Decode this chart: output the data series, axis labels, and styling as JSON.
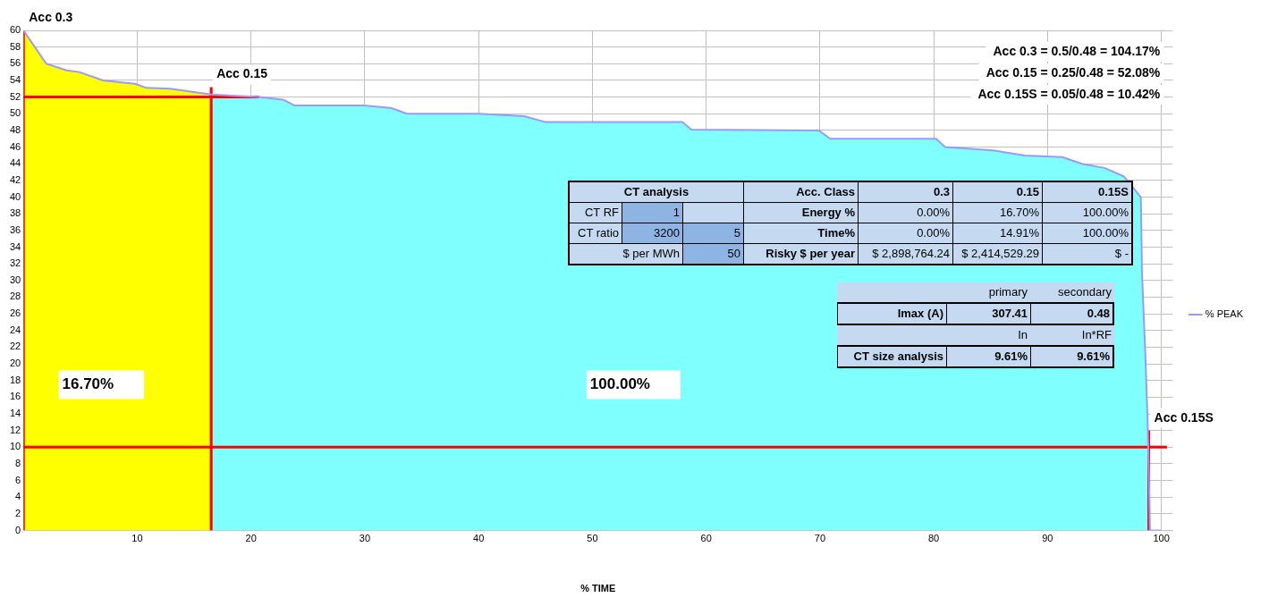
{
  "chart_data": [
    {
      "type": "area",
      "xlabel": "% TIME",
      "xlim": [
        0,
        101
      ],
      "ylim": [
        0,
        60
      ],
      "xticks": [
        {
          "value": 0,
          "label": null
        },
        10,
        20,
        30,
        40,
        50,
        60,
        70,
        80,
        90,
        100
      ],
      "yticks": [
        0,
        2,
        4,
        6,
        8,
        10,
        12,
        14,
        16,
        18,
        20,
        22,
        24,
        26,
        28,
        30,
        32,
        34,
        36,
        38,
        40,
        42,
        44,
        46,
        48,
        50,
        52,
        54,
        56,
        58,
        60
      ],
      "grid": true,
      "legend": "right",
      "marker": "none",
      "series": [
        {
          "type": "area",
          "color": "#ffff00",
          "x": [
            0,
            2,
            3.8,
            4.9,
            7,
            9.8,
            10.8,
            12.9,
            16.5
          ],
          "values": [
            60,
            56,
            55.2,
            55,
            54,
            53.6,
            53.1,
            53,
            52.3
          ]
        },
        {
          "type": "area",
          "color": "#80ffff",
          "x": [
            16.5,
            20.7,
            22.8,
            23.8,
            29.9,
            32.3,
            33.7,
            40,
            44,
            45.9,
            57.9,
            58.7,
            69.9,
            70.9,
            80.2,
            81,
            85.2,
            88,
            91.3,
            93,
            95,
            96.7,
            98.2,
            98.3,
            98.6,
            98.8,
            98.9,
            99
          ],
          "values": [
            52.3,
            52,
            51.7,
            51,
            51,
            50.7,
            50,
            50,
            49.7,
            49,
            49,
            48.1,
            48,
            47,
            47,
            46,
            45.6,
            45,
            44.8,
            44,
            43.5,
            42.5,
            40,
            31,
            21,
            13,
            7,
            0
          ]
        },
        {
          "type": "line",
          "name": "% PEAK",
          "color": "#9999ff",
          "x": [
            0,
            2,
            3.8,
            4.9,
            7,
            9.8,
            10.8,
            12.9,
            16.5,
            20.7,
            22.8,
            23.8,
            29.9,
            32.3,
            33.7,
            40,
            44,
            45.9,
            57.9,
            58.7,
            69.9,
            70.9,
            80.2,
            81,
            85.2,
            88,
            91.3,
            93,
            95,
            96.7,
            98.2,
            98.3,
            98.6,
            98.8,
            98.9,
            99,
            100
          ],
          "values": [
            60,
            56,
            55.2,
            55,
            54,
            53.6,
            53.1,
            53,
            52.3,
            52,
            51.7,
            51,
            51,
            50.7,
            50,
            50,
            49.7,
            49,
            49,
            48.1,
            48,
            47,
            47,
            46,
            45.6,
            45,
            44.8,
            44,
            43.5,
            42.5,
            40,
            31,
            21,
            13,
            7,
            0,
            0
          ]
        },
        {
          "type": "line",
          "color": "#ff0000",
          "x": [
            0,
            0
          ],
          "values": [
            0,
            60
          ]
        },
        {
          "type": "line",
          "color": "#ff0000",
          "x": [
            0,
            20.7
          ],
          "values": [
            52,
            52
          ]
        },
        {
          "type": "line",
          "color": "#ff0000",
          "x": [
            16.5,
            16.5
          ],
          "values": [
            0,
            53.2
          ]
        },
        {
          "type": "line",
          "color": "#ff0000",
          "x": [
            0,
            100.5
          ],
          "values": [
            10,
            10
          ]
        },
        {
          "type": "line",
          "color": "#ff0000",
          "x": [
            98.9,
            98.9
          ],
          "values": [
            0,
            12
          ]
        }
      ],
      "annotations": [
        {
          "text": "Acc 0.3",
          "x": 0,
          "y": 60
        },
        {
          "text": "Acc 0.15",
          "x": 16.5,
          "y": 53.2
        },
        {
          "text": "Acc 0.15S",
          "x": 98.9,
          "y": 12
        },
        "16.70%",
        "100.00%",
        "Acc 0.3 = 0.5/0.48 = 104.17%",
        "Acc 0.15 = 0.25/0.48 = 52.08%",
        "Acc 0.15S = 0.05/0.48 = 10.42%"
      ]
    },
    {
      "type": "other",
      "annotations": [
        "CT analysis",
        "Acc. Class",
        "0.3",
        "0.15",
        "0.15S",
        "CT RF",
        "1",
        "Energy %",
        "0.00%",
        "16.70%",
        "100.00%",
        "CT ratio",
        "3200",
        "5",
        "Time%",
        "0.00%",
        "14.91%",
        "100.00%",
        "$ per MWh",
        "50",
        "Risky $ per year",
        "$ 2,898,764.24",
        "$ 2,414,529.29",
        "$ -"
      ]
    },
    {
      "type": "other",
      "annotations": [
        "primary",
        "secondary",
        "Imax (A)",
        "307.41",
        "0.48",
        "In",
        "In*RF",
        "CT size analysis",
        "9.61%",
        "9.61%"
      ]
    }
  ]
}
